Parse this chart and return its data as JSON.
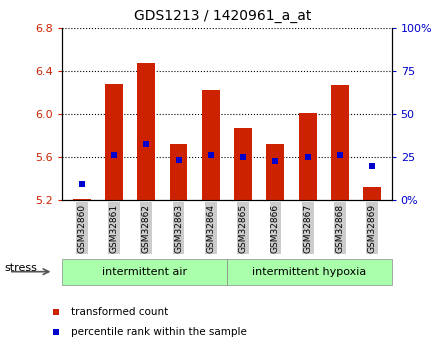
{
  "title": "GDS1213 / 1420961_a_at",
  "samples": [
    "GSM32860",
    "GSM32861",
    "GSM32862",
    "GSM32863",
    "GSM32864",
    "GSM32865",
    "GSM32866",
    "GSM32867",
    "GSM32868",
    "GSM32869"
  ],
  "bar_values": [
    5.21,
    6.28,
    6.47,
    5.72,
    6.22,
    5.87,
    5.72,
    6.01,
    6.27,
    5.32
  ],
  "percentile_values": [
    5.35,
    5.62,
    5.72,
    5.57,
    5.62,
    5.6,
    5.56,
    5.6,
    5.62,
    5.52
  ],
  "bar_bottom": 5.2,
  "ylim_left": [
    5.2,
    6.8
  ],
  "ylim_right": [
    0,
    100
  ],
  "yticks_left": [
    5.2,
    5.6,
    6.0,
    6.4,
    6.8
  ],
  "yticks_right": [
    0,
    25,
    50,
    75,
    100
  ],
  "bar_color": "#cc2200",
  "percentile_color": "#0000cc",
  "group1_label": "intermittent air",
  "group2_label": "intermittent hypoxia",
  "group_bg_color": "#aaffaa",
  "stress_label": "stress",
  "legend_bar_label": "transformed count",
  "legend_pct_label": "percentile rank within the sample",
  "tick_label_color_left": "#cc2200",
  "tick_label_color_right": "#0000cc",
  "bar_width": 0.55,
  "background_color": "#ffffff"
}
